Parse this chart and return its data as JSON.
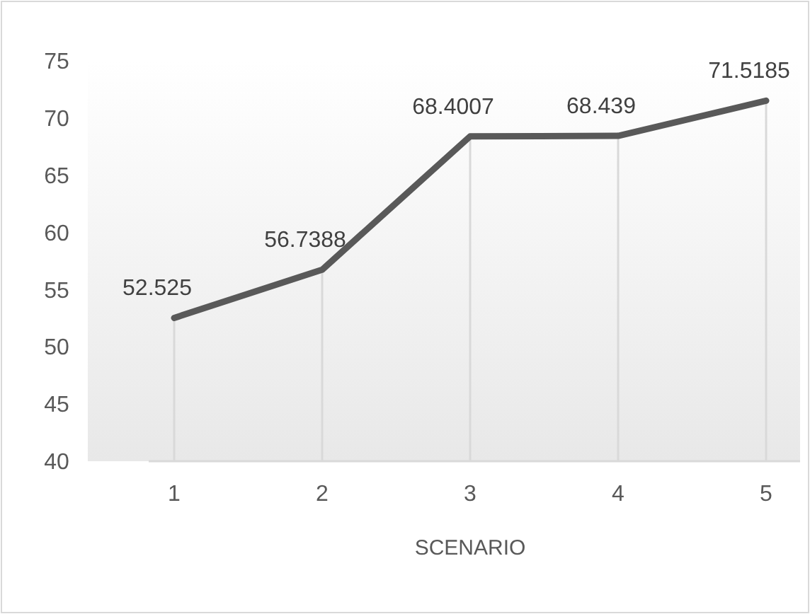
{
  "chart_data": {
    "type": "line",
    "categories": [
      "1",
      "2",
      "3",
      "4",
      "5"
    ],
    "series": [
      {
        "color": "#595959",
        "values": [
          52.525,
          56.7388,
          68.4007,
          68.439,
          71.5185
        ]
      }
    ],
    "xlabel": "SCENARIO",
    "ylim": [
      40,
      75
    ],
    "yticks": [
      40,
      45,
      50,
      55,
      60,
      65,
      70,
      75
    ],
    "data_labels": true,
    "marker": "none",
    "line_style": "solid",
    "grid": "x"
  }
}
